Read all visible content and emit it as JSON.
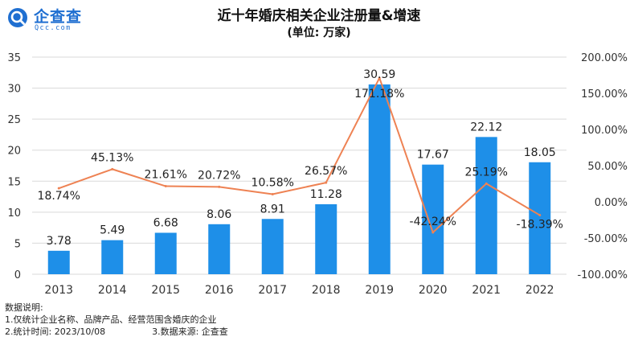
{
  "brand": {
    "name": "企查查",
    "domain": "Qcc.com",
    "color": "#1f6fd1"
  },
  "colors": {
    "bar": "#1e8fe8",
    "line": "#ee8253",
    "grid": "#d9d9d9"
  },
  "notes": {
    "heading": "数据说明:",
    "line1": "1.仅统计企业名称、品牌产品、经营范围含婚庆的企业",
    "line2a": "2.统计时间: 2023/10/08",
    "line2b": "3.数据来源: 企查查"
  },
  "chart_data": {
    "type": "bar",
    "title": "近十年婚庆相关企业注册量&增速",
    "subtitle": "(单位: 万家)",
    "categories": [
      "2013",
      "2014",
      "2015",
      "2016",
      "2017",
      "2018",
      "2019",
      "2020",
      "2021",
      "2022"
    ],
    "series": [
      {
        "type": "bar",
        "axis": "left",
        "values": [
          3.78,
          5.49,
          6.68,
          8.06,
          8.91,
          11.28,
          30.59,
          17.67,
          22.12,
          18.05
        ],
        "labels": [
          "3.78",
          "5.49",
          "6.68",
          "8.06",
          "8.91",
          "11.28",
          "30.59",
          "17.67",
          "22.12",
          "18.05"
        ]
      },
      {
        "type": "line",
        "axis": "right",
        "values": [
          18.74,
          45.13,
          21.61,
          20.72,
          10.58,
          26.57,
          171.18,
          -42.24,
          25.19,
          -18.39
        ],
        "labels": [
          "18.74%",
          "45.13%",
          "21.61%",
          "20.72%",
          "10.58%",
          "26.57%",
          "171.18%",
          "-42.24%",
          "25.19%",
          "-18.39%"
        ]
      }
    ],
    "ylim": [
      0,
      35
    ],
    "yticks": [
      "0",
      "5",
      "10",
      "15",
      "20",
      "25",
      "30",
      "35"
    ],
    "y2lim": [
      -100,
      200
    ],
    "y2ticks": [
      "-100.00%",
      "-50.00%",
      "0.00%",
      "50.00%",
      "100.00%",
      "150.00%",
      "200.00%"
    ],
    "grid": true,
    "legend": "none"
  }
}
